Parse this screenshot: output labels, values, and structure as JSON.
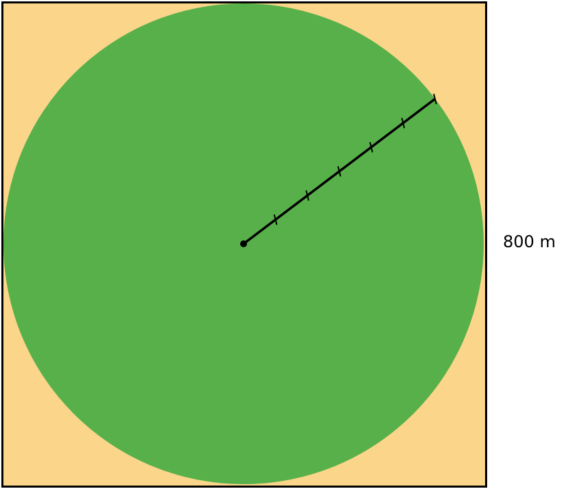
{
  "diagram": {
    "side_label": "800 m",
    "radius_divisions": 6,
    "colors": {
      "square_fill": "#FAD58A",
      "circle_fill": "#58B04A",
      "stroke": "#000000"
    }
  }
}
